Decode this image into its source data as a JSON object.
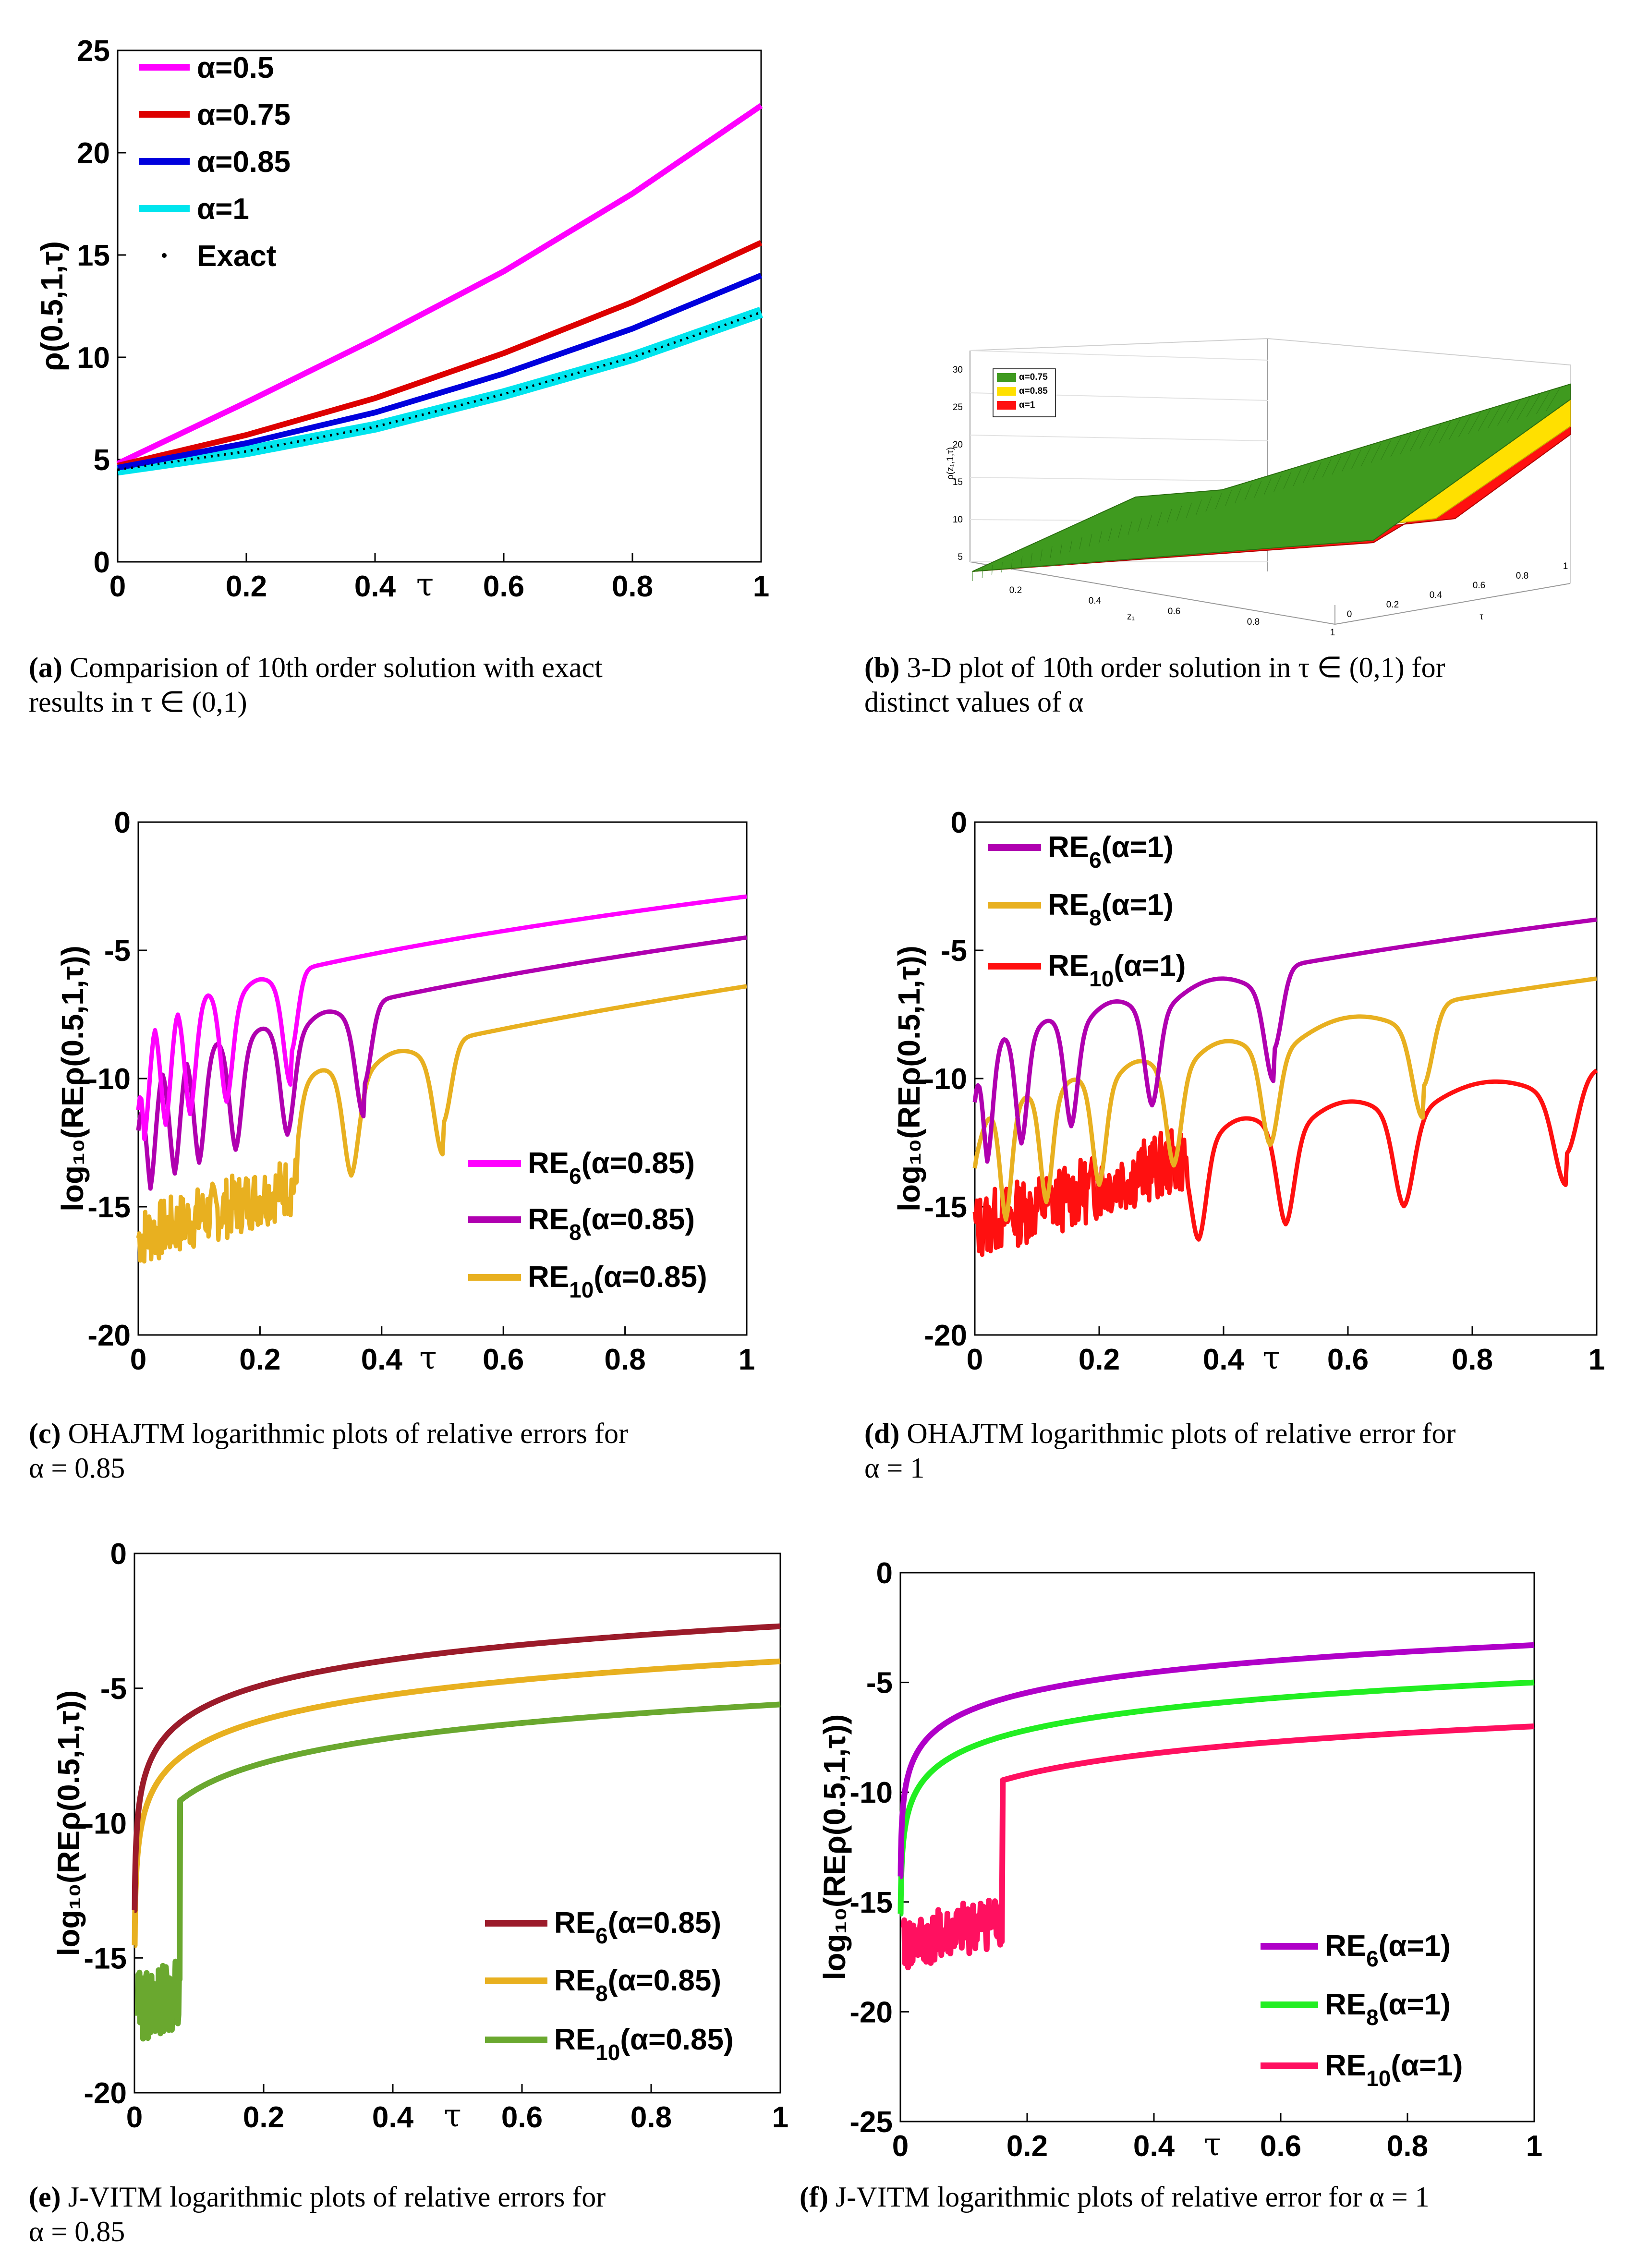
{
  "chart_data": [
    {
      "id": "a",
      "type": "line",
      "ylabel": "ρ(0.5,1,τ)",
      "xlabel": "τ",
      "xlim": [
        0,
        1
      ],
      "ylim": [
        0,
        25
      ],
      "xticks": [
        "0",
        "0.2",
        "0.4",
        "0.6",
        "0.8",
        "1"
      ],
      "yticks": [
        "0",
        "5",
        "10",
        "15",
        "20",
        "25"
      ],
      "legend_position": "top-left",
      "series": [
        {
          "name": "α=0.5",
          "color": "#ff00ff",
          "values": [
            [
              0,
              4.8
            ],
            [
              0.2,
              7.8
            ],
            [
              0.4,
              10.9
            ],
            [
              0.6,
              14.2
            ],
            [
              0.8,
              18.0
            ],
            [
              1,
              22.3
            ]
          ]
        },
        {
          "name": "α=0.75",
          "color": "#dd0000",
          "values": [
            [
              0,
              4.7
            ],
            [
              0.2,
              6.2
            ],
            [
              0.4,
              8.0
            ],
            [
              0.6,
              10.2
            ],
            [
              0.8,
              12.7
            ],
            [
              1,
              15.6
            ]
          ]
        },
        {
          "name": "α=0.85",
          "color": "#0000dd",
          "values": [
            [
              0,
              4.6
            ],
            [
              0.2,
              5.8
            ],
            [
              0.4,
              7.3
            ],
            [
              0.6,
              9.2
            ],
            [
              0.8,
              11.4
            ],
            [
              1,
              14.0
            ]
          ]
        },
        {
          "name": "α=1",
          "color": "#00e5ee",
          "values": [
            [
              0,
              4.5
            ],
            [
              0.2,
              5.4
            ],
            [
              0.4,
              6.6
            ],
            [
              0.6,
              8.2
            ],
            [
              0.8,
              10.0
            ],
            [
              1,
              12.2
            ]
          ]
        },
        {
          "name": "Exact",
          "color": "#000000",
          "values": [
            [
              0,
              4.5
            ],
            [
              0.2,
              5.4
            ],
            [
              0.4,
              6.6
            ],
            [
              0.6,
              8.2
            ],
            [
              0.8,
              10.0
            ],
            [
              1,
              12.2
            ]
          ]
        }
      ],
      "caption": {
        "label": "(a)",
        "lines": [
          "Comparision of 10th order solution with exact",
          "results in τ ∈ (0,1)"
        ]
      }
    },
    {
      "id": "b",
      "type": "area",
      "zlabel": "ρ(z₁,1,τ)",
      "xlabel": "z₁",
      "ylabel": "τ",
      "zticks": [
        "5",
        "10",
        "15",
        "20",
        "25",
        "30"
      ],
      "xticks": [
        "0.2",
        "0.4",
        "0.6",
        "0.8",
        "1"
      ],
      "yticks": [
        "0",
        "0.2",
        "0.4",
        "0.6",
        "0.8",
        "1"
      ],
      "legend_position": "top-left",
      "series": [
        {
          "name": "α=0.75",
          "color": "#3f9a1f"
        },
        {
          "name": "α=0.85",
          "color": "#ffe000"
        },
        {
          "name": "α=1",
          "color": "#ff1010"
        }
      ],
      "caption": {
        "label": "(b)",
        "lines": [
          "3-D plot of 10th order solution in τ ∈ (0,1) for",
          "distinct values of α"
        ]
      }
    },
    {
      "id": "c",
      "type": "line",
      "ylabel": "log₁₀(REρ(0.5,1,τ))",
      "xlabel": "τ",
      "xlim": [
        0,
        1
      ],
      "ylim": [
        -20,
        0
      ],
      "xticks": [
        "0",
        "0.2",
        "0.4",
        "0.6",
        "0.8",
        "1"
      ],
      "yticks": [
        "0",
        "-5",
        "-10",
        "-15",
        "-20"
      ],
      "legend_position": "bottom-right",
      "series": [
        {
          "name": "RE",
          "sub": "6",
          "suffix": "(α=0.85)",
          "color": "#ff00ff",
          "dips": [
            0.01,
            0.045,
            0.085,
            0.145,
            0.25
          ],
          "base": -8.4,
          "end": -2.9
        },
        {
          "name": "RE",
          "sub": "8",
          "suffix": "(α=0.85)",
          "color": "#b000b0",
          "dips": [
            0.02,
            0.06,
            0.1,
            0.16,
            0.245,
            0.37
          ],
          "base": -10.6,
          "end": -4.5
        },
        {
          "name": "RE",
          "sub": "10",
          "suffix": "(α=0.85)",
          "color": "#e8b020",
          "dips": [
            0.25,
            0.35,
            0.5
          ],
          "base": -13.2,
          "end": -6.4
        }
      ],
      "caption": {
        "label": "(c)",
        "lines": [
          "OHAJTM logarithmic plots of relative errors for",
          "α = 0.85"
        ]
      }
    },
    {
      "id": "d",
      "type": "line",
      "ylabel": "log₁₀(REρ(0.5,1,τ))",
      "xlabel": "τ",
      "xlim": [
        0,
        1
      ],
      "ylim": [
        -20,
        0
      ],
      "xticks": [
        "0",
        "0.2",
        "0.4",
        "0.6",
        "0.8",
        "1"
      ],
      "yticks": [
        "0",
        "-5",
        "-10",
        "-15",
        "-20"
      ],
      "legend_position": "top-left",
      "series": [
        {
          "name": "RE",
          "sub": "6",
          "suffix": "(α=1)",
          "color": "#b000b0",
          "dips": [
            0.02,
            0.075,
            0.155,
            0.285,
            0.48
          ],
          "base": -9.5,
          "end": -3.8
        },
        {
          "name": "RE",
          "sub": "8",
          "suffix": "(α=1)",
          "color": "#e8b020",
          "dips": [
            0.05,
            0.115,
            0.2,
            0.32,
            0.475,
            0.72
          ],
          "base": -12.3,
          "end": -6.1
        },
        {
          "name": "RE",
          "sub": "10",
          "suffix": "(α=1)",
          "color": "#ff1010",
          "dips": [
            0.36,
            0.5,
            0.69,
            0.95
          ],
          "base": -14.9,
          "end": -9.6
        }
      ],
      "caption": {
        "label": "(d)",
        "lines": [
          "OHAJTM logarithmic plots of relative error for",
          "α = 1"
        ]
      }
    },
    {
      "id": "e",
      "type": "line",
      "ylabel": "log₁₀(REρ(0.5,1,τ))",
      "xlabel": "τ",
      "xlim": [
        0,
        1
      ],
      "ylim": [
        -20,
        0
      ],
      "xticks": [
        "0",
        "0.2",
        "0.4",
        "0.6",
        "0.8",
        "1"
      ],
      "yticks": [
        "0",
        "-5",
        "-10",
        "-15",
        "-20"
      ],
      "legend_position": "bottom-right",
      "series": [
        {
          "name": "RE",
          "sub": "6",
          "suffix": "(α=0.85)",
          "color": "#9b1b2a",
          "k": 2.7
        },
        {
          "name": "RE",
          "sub": "8",
          "suffix": "(α=0.85)",
          "color": "#e8b020",
          "k": 4.0
        },
        {
          "name": "RE",
          "sub": "10",
          "suffix": "(α=0.85)",
          "color": "#6aa82f",
          "k": 5.6
        }
      ],
      "caption": {
        "label": "(e)",
        "lines": [
          "J-VITM logarithmic plots of relative errors for",
          "α = 0.85"
        ]
      }
    },
    {
      "id": "f",
      "type": "line",
      "ylabel": "log₁₀(REρ(0.5,1,τ))",
      "xlabel": "τ",
      "xlim": [
        0,
        1
      ],
      "ylim": [
        -25,
        0
      ],
      "xticks": [
        "0",
        "0.2",
        "0.4",
        "0.6",
        "0.8",
        "1"
      ],
      "yticks": [
        "0",
        "-5",
        "-10",
        "-15",
        "-20",
        "-25"
      ],
      "legend_position": "bottom-right",
      "series": [
        {
          "name": "RE",
          "sub": "6",
          "suffix": "(α=1)",
          "color": "#b000c8",
          "k": 3.3
        },
        {
          "name": "RE",
          "sub": "8",
          "suffix": "(α=1)",
          "color": "#22ee22",
          "k": 5.0
        },
        {
          "name": "RE",
          "sub": "10",
          "suffix": "(α=1)",
          "color": "#ff1060",
          "k": 7.0
        }
      ],
      "caption": {
        "label": "(f)",
        "lines": [
          "J-VITM logarithmic plots of relative error for α = 1"
        ]
      }
    }
  ]
}
